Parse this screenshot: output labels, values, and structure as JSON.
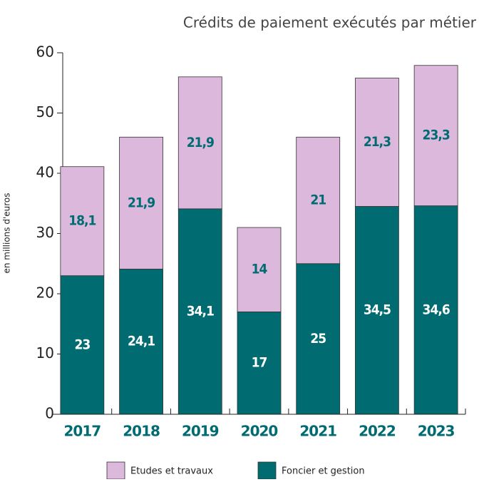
{
  "chart_data": {
    "type": "stacked_bar",
    "title": "Crédits de paiement exécutés par métier",
    "y_label": "en millions d'euros",
    "categories": [
      "2017",
      "2018",
      "2019",
      "2020",
      "2021",
      "2022",
      "2023"
    ],
    "series": [
      {
        "name": "Foncier et gestion",
        "color": "#006b70",
        "label_color": "#ffffff",
        "values": [
          23,
          24.1,
          34.1,
          17,
          25,
          34.5,
          34.6
        ],
        "value_labels": [
          "23",
          "24,1",
          "34,1",
          "17",
          "25",
          "34,5",
          "34,6"
        ]
      },
      {
        "name": "Etudes et travaux",
        "color": "#dbb8dc",
        "label_color": "#006b70",
        "values": [
          18.1,
          21.9,
          21.9,
          14,
          21,
          21.3,
          23.3
        ],
        "value_labels": [
          "18,1",
          "21,9",
          "21,9",
          "14",
          "21",
          "21,3",
          "23,3"
        ]
      }
    ],
    "ylim": [
      0,
      60
    ],
    "yticks": [
      0,
      10,
      20,
      30,
      40,
      50,
      60
    ]
  }
}
